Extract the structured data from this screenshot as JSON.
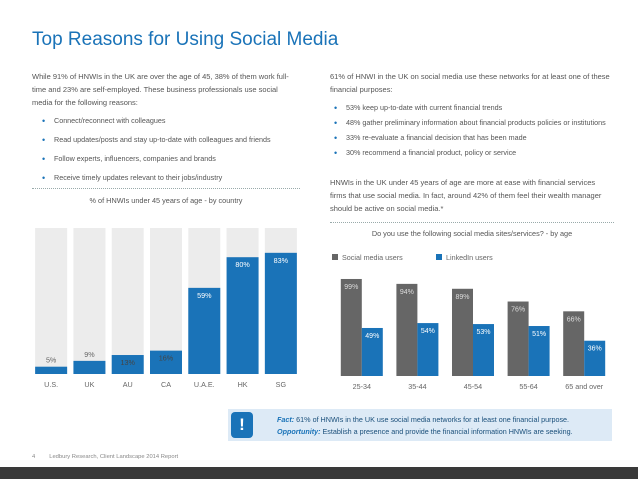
{
  "title": "Top Reasons for Using Social Media",
  "left": {
    "intro": "While 91% of HNWIs in the UK are over the age of 45, 38% of them work full-time and 23% are self-employed. These business professionals use social media for the following reasons:",
    "bullets": [
      "Connect/reconnect with colleagues",
      "Read updates/posts and stay up-to-date with colleagues and friends",
      "Follow experts, influencers, companies and brands",
      "Receive timely updates relevant to their jobs/industry"
    ]
  },
  "right": {
    "intro": "61% of HNWI in the UK on social media use these networks for at least one of these financial purposes:",
    "bullets": [
      "53% keep up-to-date with current financial trends",
      "48% gather preliminary information about financial products policies or institutions",
      "33% re-evaluate a financial decision that has been made",
      "30% recommend a financial product, policy or service"
    ],
    "para2": "HNWIs in the UK under 45 years of age are more at ease with financial services firms that use social media. In fact, around 42% of them feel their wealth manager should be active on social media.*"
  },
  "chart_data": [
    {
      "type": "bar",
      "title": "% of HNWIs under 45 years of age - by country",
      "categories": [
        "U.S.",
        "UK",
        "AU",
        "CA",
        "U.A.E.",
        "HK",
        "SG"
      ],
      "values": [
        5,
        9,
        13,
        16,
        59,
        80,
        83
      ],
      "value_labels": [
        "5%",
        "9%",
        "13%",
        "16%",
        "59%",
        "80%",
        "83%"
      ],
      "ylim": [
        0,
        100
      ],
      "colors": {
        "bar": "#1a73b8",
        "track": "#ececec"
      }
    },
    {
      "type": "bar",
      "title": "Do you use the following social media sites/services? - by age",
      "categories": [
        "25-34",
        "35-44",
        "45-54",
        "55-64",
        "65 and over"
      ],
      "series": [
        {
          "name": "Social media users",
          "values": [
            99,
            94,
            89,
            76,
            66
          ],
          "labels": [
            "99%",
            "94%",
            "89%",
            "76%",
            "66%"
          ],
          "color": "#666666"
        },
        {
          "name": "LinkedIn users",
          "values": [
            49,
            54,
            53,
            51,
            36
          ],
          "labels": [
            "49%",
            "54%",
            "53%",
            "51%",
            "36%"
          ],
          "color": "#1a73b8"
        }
      ],
      "ylim": [
        0,
        100
      ],
      "legend": "top-left"
    }
  ],
  "callout": {
    "icon": "exclamation-icon",
    "fact_label": "Fact:",
    "fact_text": " 61% of HNWIs in the UK use social media networks for at least one financial purpose.",
    "opp_label": "Opportunity:",
    "opp_text": " Establish a presence and provide the financial information HNWIs are seeking."
  },
  "footer": {
    "page": "4",
    "source": "Ledbury Research, Client Landscape 2014 Report"
  }
}
